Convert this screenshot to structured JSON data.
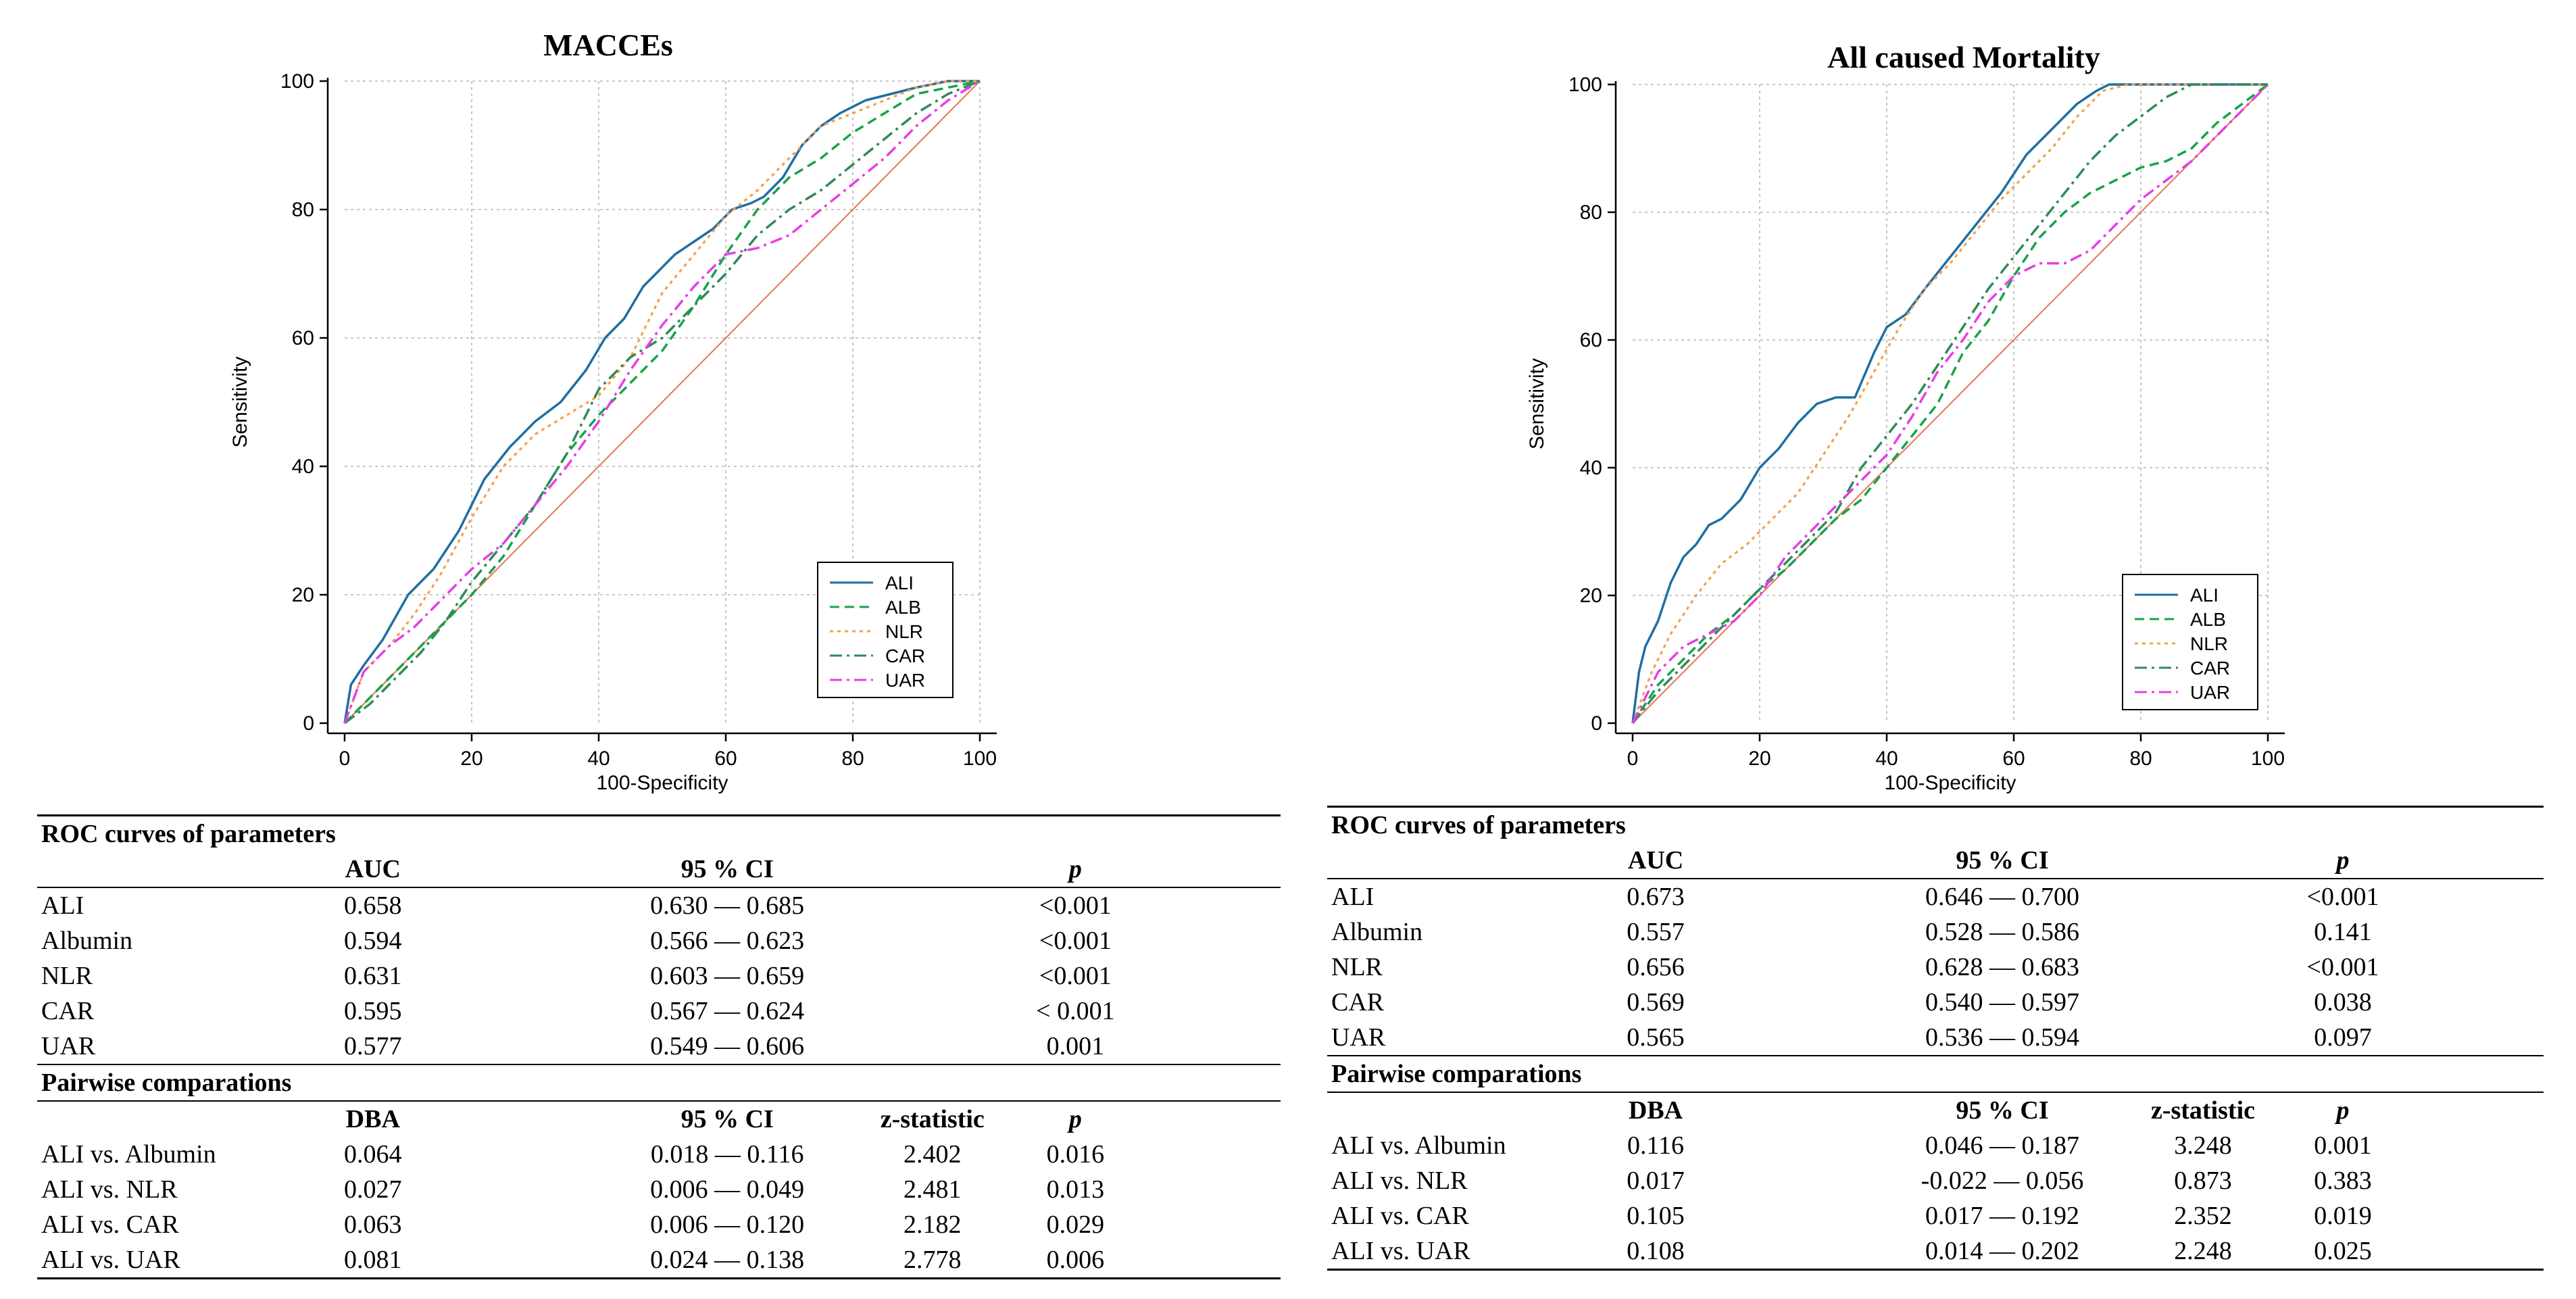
{
  "legend_names": [
    "ALI",
    "ALB",
    "NLR",
    "CAR",
    "UAR"
  ],
  "colors": {
    "ALI": "#1f6fa3",
    "ALB": "#16a34a",
    "NLR": "#f5a04a",
    "CAR": "#2e8b57",
    "UAR": "#e63ee6",
    "reference": "#e8735a",
    "grid": "#b5b5b5"
  },
  "chart_data": [
    {
      "type": "line",
      "title": "MACCEs",
      "xlabel": "100-Specificity",
      "ylabel": "Sensitivity",
      "xlim": [
        0,
        100
      ],
      "ylim": [
        0,
        100
      ],
      "xticks": [
        0,
        20,
        40,
        60,
        80,
        100
      ],
      "yticks": [
        0,
        20,
        40,
        60,
        80,
        100
      ],
      "grid": true,
      "legend_position": "bottom-right",
      "reference_line": [
        [
          0,
          0
        ],
        [
          100,
          100
        ]
      ],
      "series": [
        {
          "name": "ALI",
          "x": [
            0,
            1,
            3,
            6,
            10,
            14,
            18,
            22,
            26,
            30,
            34,
            38,
            41,
            44,
            47,
            50,
            52,
            55,
            58,
            61,
            64,
            66,
            69,
            72,
            75,
            78,
            82,
            86,
            90,
            95,
            100
          ],
          "y": [
            0,
            6,
            9,
            13,
            20,
            24,
            30,
            38,
            43,
            47,
            50,
            55,
            60,
            63,
            68,
            71,
            73,
            75,
            77,
            80,
            81,
            82,
            85,
            90,
            93,
            95,
            97,
            98,
            99,
            100,
            100
          ]
        },
        {
          "name": "ALB",
          "x": [
            0,
            3,
            7,
            11,
            15,
            20,
            25,
            30,
            35,
            40,
            45,
            50,
            55,
            60,
            65,
            70,
            75,
            80,
            85,
            90,
            95,
            100
          ],
          "y": [
            0,
            3,
            7,
            11,
            15,
            20,
            26,
            34,
            42,
            48,
            53,
            58,
            65,
            73,
            80,
            85,
            88,
            92,
            95,
            98,
            99,
            100
          ]
        },
        {
          "name": "NLR",
          "x": [
            0,
            3,
            7,
            11,
            15,
            20,
            25,
            30,
            35,
            40,
            45,
            50,
            55,
            60,
            65,
            70,
            75,
            80,
            85,
            90,
            95,
            100
          ],
          "y": [
            0,
            8,
            12,
            17,
            23,
            32,
            40,
            45,
            48,
            51,
            57,
            67,
            73,
            79,
            83,
            88,
            93,
            95,
            97,
            99,
            100,
            100
          ]
        },
        {
          "name": "CAR",
          "x": [
            0,
            4,
            8,
            12,
            16,
            20,
            25,
            30,
            35,
            40,
            45,
            50,
            55,
            60,
            65,
            70,
            75,
            80,
            85,
            90,
            95,
            100
          ],
          "y": [
            0,
            3,
            7,
            11,
            16,
            22,
            28,
            34,
            42,
            52,
            57,
            60,
            65,
            70,
            76,
            80,
            83,
            87,
            91,
            95,
            98,
            100
          ]
        },
        {
          "name": "UAR",
          "x": [
            0,
            3,
            7,
            11,
            15,
            20,
            25,
            30,
            35,
            40,
            45,
            50,
            55,
            60,
            65,
            70,
            75,
            80,
            85,
            90,
            95,
            100
          ],
          "y": [
            0,
            8,
            12,
            15,
            19,
            24,
            28,
            34,
            40,
            47,
            55,
            62,
            68,
            73,
            74,
            76,
            80,
            84,
            88,
            93,
            97,
            100
          ]
        }
      ]
    },
    {
      "type": "line",
      "title": "All caused Mortality",
      "xlabel": "100-Specificity",
      "ylabel": "Sensitivity",
      "xlim": [
        0,
        100
      ],
      "ylim": [
        0,
        100
      ],
      "xticks": [
        0,
        20,
        40,
        60,
        80,
        100
      ],
      "yticks": [
        0,
        20,
        40,
        60,
        80,
        100
      ],
      "grid": true,
      "legend_position": "bottom-right",
      "reference_line": [
        [
          0,
          0
        ],
        [
          100,
          100
        ]
      ],
      "series": [
        {
          "name": "ALI",
          "x": [
            0,
            1,
            2,
            4,
            6,
            8,
            10,
            12,
            14,
            17,
            20,
            23,
            26,
            29,
            32,
            35,
            38,
            40,
            43,
            46,
            50,
            54,
            58,
            62,
            66,
            70,
            73,
            75,
            80,
            90,
            100
          ],
          "y": [
            0,
            8,
            12,
            16,
            22,
            26,
            28,
            31,
            32,
            35,
            40,
            43,
            47,
            50,
            51,
            51,
            58,
            62,
            64,
            68,
            73,
            78,
            83,
            89,
            93,
            97,
            99,
            100,
            100,
            100,
            100
          ]
        },
        {
          "name": "ALB",
          "x": [
            0,
            4,
            8,
            12,
            16,
            20,
            24,
            28,
            32,
            36,
            40,
            44,
            48,
            52,
            56,
            60,
            64,
            68,
            72,
            76,
            80,
            84,
            88,
            92,
            96,
            100
          ],
          "y": [
            0,
            6,
            10,
            14,
            17,
            21,
            24,
            28,
            32,
            35,
            40,
            45,
            50,
            58,
            63,
            70,
            76,
            80,
            83,
            85,
            87,
            88,
            90,
            94,
            97,
            100
          ]
        },
        {
          "name": "NLR",
          "x": [
            0,
            3,
            6,
            10,
            14,
            18,
            22,
            26,
            30,
            34,
            38,
            42,
            46,
            50,
            54,
            58,
            62,
            66,
            70,
            74,
            78,
            82,
            86,
            90,
            100
          ],
          "y": [
            0,
            8,
            14,
            20,
            25,
            28,
            32,
            36,
            42,
            48,
            55,
            62,
            68,
            72,
            77,
            82,
            86,
            90,
            95,
            99,
            100,
            100,
            100,
            100,
            100
          ]
        },
        {
          "name": "CAR",
          "x": [
            0,
            4,
            8,
            12,
            16,
            20,
            24,
            28,
            32,
            36,
            40,
            44,
            48,
            52,
            56,
            60,
            64,
            68,
            72,
            76,
            80,
            84,
            88,
            92,
            96,
            100
          ],
          "y": [
            0,
            5,
            9,
            13,
            17,
            21,
            25,
            29,
            33,
            40,
            45,
            50,
            56,
            62,
            68,
            73,
            78,
            83,
            88,
            92,
            95,
            98,
            100,
            100,
            100,
            100
          ]
        },
        {
          "name": "UAR",
          "x": [
            0,
            4,
            8,
            12,
            16,
            20,
            24,
            28,
            32,
            36,
            40,
            44,
            48,
            52,
            56,
            60,
            64,
            68,
            72,
            76,
            80,
            84,
            88,
            92,
            96,
            100
          ],
          "y": [
            0,
            8,
            12,
            14,
            16,
            20,
            26,
            30,
            34,
            38,
            42,
            48,
            55,
            60,
            66,
            70,
            72,
            72,
            74,
            78,
            82,
            85,
            88,
            92,
            96,
            100
          ]
        }
      ]
    }
  ],
  "tables": [
    {
      "roc_section": "ROC curves of parameters",
      "roc_headers": [
        "",
        "AUC",
        "95 % CI",
        "p"
      ],
      "roc_rows": [
        [
          "ALI",
          "0.658",
          "0.630 — 0.685",
          "<0.001"
        ],
        [
          "Albumin",
          "0.594",
          "0.566 — 0.623",
          "<0.001"
        ],
        [
          "NLR",
          "0.631",
          "0.603 — 0.659",
          "<0.001"
        ],
        [
          "CAR",
          "0.595",
          "0.567 — 0.624",
          "< 0.001"
        ],
        [
          "UAR",
          "0.577",
          "0.549 — 0.606",
          "0.001"
        ]
      ],
      "pair_section": "Pairwise comparations",
      "pair_headers": [
        "",
        "DBA",
        "95 % CI",
        "z-statistic",
        "p"
      ],
      "pair_rows": [
        [
          "ALI vs. Albumin",
          "0.064",
          "0.018 — 0.116",
          "2.402",
          "0.016"
        ],
        [
          "ALI vs. NLR",
          "0.027",
          "0.006 — 0.049",
          "2.481",
          "0.013"
        ],
        [
          "ALI vs. CAR",
          "0.063",
          "0.006 — 0.120",
          "2.182",
          "0.029"
        ],
        [
          "ALI vs. UAR",
          "0.081",
          "0.024 — 0.138",
          "2.778",
          "0.006"
        ]
      ]
    },
    {
      "roc_section": "ROC curves of parameters",
      "roc_headers": [
        "",
        "AUC",
        "95 % CI",
        "p"
      ],
      "roc_rows": [
        [
          "ALI",
          "0.673",
          "0.646 — 0.700",
          "<0.001"
        ],
        [
          "Albumin",
          "0.557",
          "0.528 — 0.586",
          "0.141"
        ],
        [
          "NLR",
          "0.656",
          "0.628 — 0.683",
          "<0.001"
        ],
        [
          "CAR",
          "0.569",
          "0.540 — 0.597",
          "0.038"
        ],
        [
          "UAR",
          "0.565",
          "0.536 — 0.594",
          "0.097"
        ]
      ],
      "pair_section": "Pairwise comparations",
      "pair_headers": [
        "",
        "DBA",
        "95 % CI",
        "z-statistic",
        "p"
      ],
      "pair_rows": [
        [
          "ALI vs. Albumin",
          "0.116",
          "0.046 — 0.187",
          "3.248",
          "0.001"
        ],
        [
          "ALI vs. NLR",
          "0.017",
          "-0.022 — 0.056",
          "0.873",
          "0.383"
        ],
        [
          "ALI vs. CAR",
          "0.105",
          "0.017 — 0.192",
          "2.352",
          "0.019"
        ],
        [
          "ALI vs. UAR",
          "0.108",
          "0.014 — 0.202",
          "2.248",
          "0.025"
        ]
      ]
    }
  ]
}
